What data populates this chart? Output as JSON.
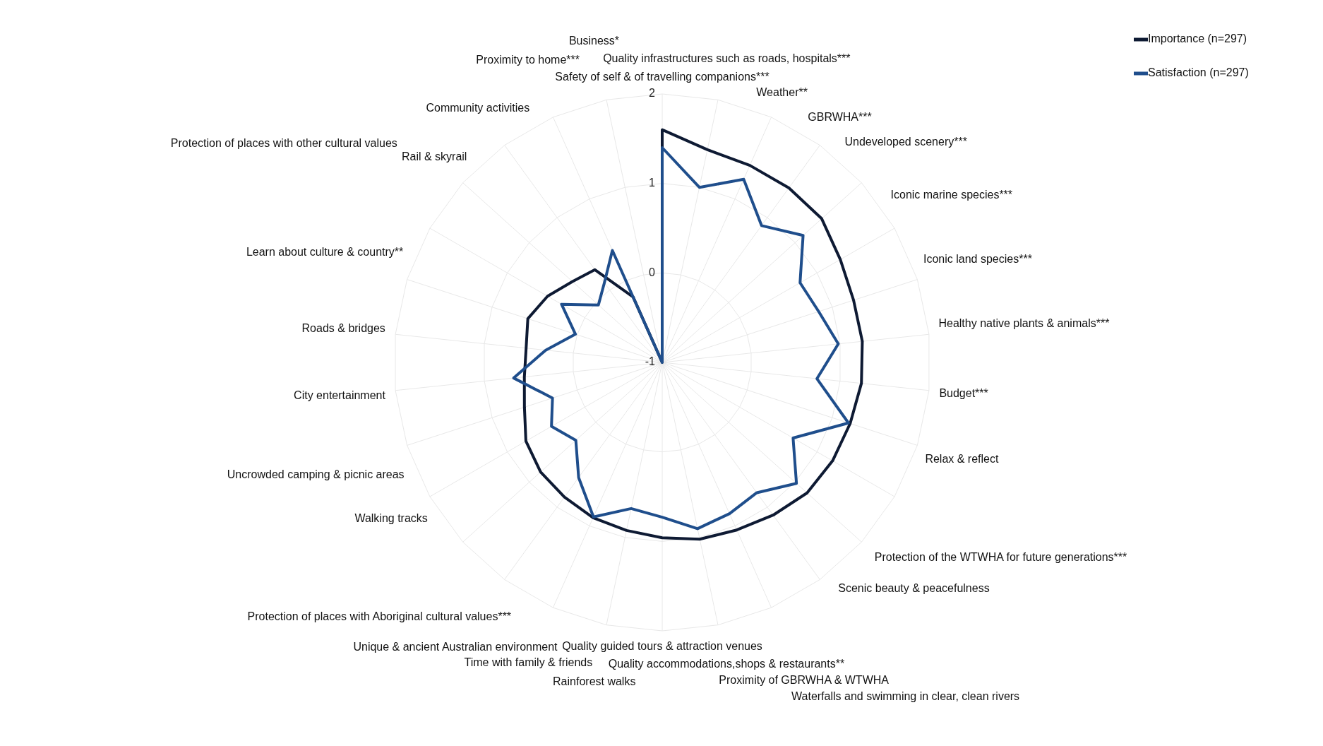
{
  "chart_data": {
    "type": "radar",
    "categories": [
      "Safety of self & of travelling companions***",
      "Quality infrastructures such as roads, hospitals***",
      "Weather**",
      "GBRWHA***",
      "Undeveloped scenery***",
      "Iconic marine species***",
      "Iconic land species***",
      "Healthy native plants & animals***",
      "Budget***",
      "Relax & reflect",
      "Protection of the WTWHA for future generations***",
      "Scenic beauty & peacefulness",
      "Waterfalls and swimming in clear, clean rivers",
      "Proximity of GBRWHA & WTWHA",
      "Quality accommodations,shops & restaurants**",
      "Quality guided tours & attraction venues",
      "Rainforest walks",
      "Time with family & friends",
      "Unique & ancient Australian environment",
      "Protection of places with Aboriginal cultural values***",
      "Walking tracks",
      "Uncrowded camping & picnic areas",
      "City entertainment",
      "Roads & bridges",
      "Learn about culture & country**",
      "Protection of places with other cultural values",
      "Rail & skyrail",
      "Community activities",
      "Proximity to home***",
      "Business*"
    ],
    "series": [
      {
        "name": "Importance (n=297)",
        "color": "#0e1a33",
        "values": [
          1.6,
          1.43,
          1.41,
          1.41,
          1.4,
          1.3,
          1.25,
          1.25,
          1.24,
          1.21,
          1.2,
          1.18,
          1.11,
          1.05,
          1.02,
          0.96,
          0.92,
          0.9,
          0.86,
          0.83,
          0.76,
          0.62,
          0.55,
          0.53,
          0.58,
          0.48,
          0.35,
          0.28,
          -0.2,
          -1
        ]
      },
      {
        "name": "Satisfaction (n=297)",
        "color": "#1f4e8c",
        "values": [
          1.4,
          1.0,
          1.24,
          0.89,
          1.12,
          0.78,
          0.84,
          0.98,
          0.74,
          1.19,
          0.69,
          1.02,
          0.8,
          0.85,
          0.9,
          0.73,
          0.67,
          0.89,
          0.59,
          0.3,
          0.43,
          0.29,
          0.67,
          0.31,
          0.02,
          0.3,
          -0.04,
          0.1,
          0.37,
          -1
        ]
      }
    ],
    "ylim": [
      -1,
      2
    ],
    "yticks": [
      -1,
      0,
      1,
      2
    ],
    "grid": true,
    "legend": "top right",
    "marker": "none",
    "line_style": "solid"
  }
}
